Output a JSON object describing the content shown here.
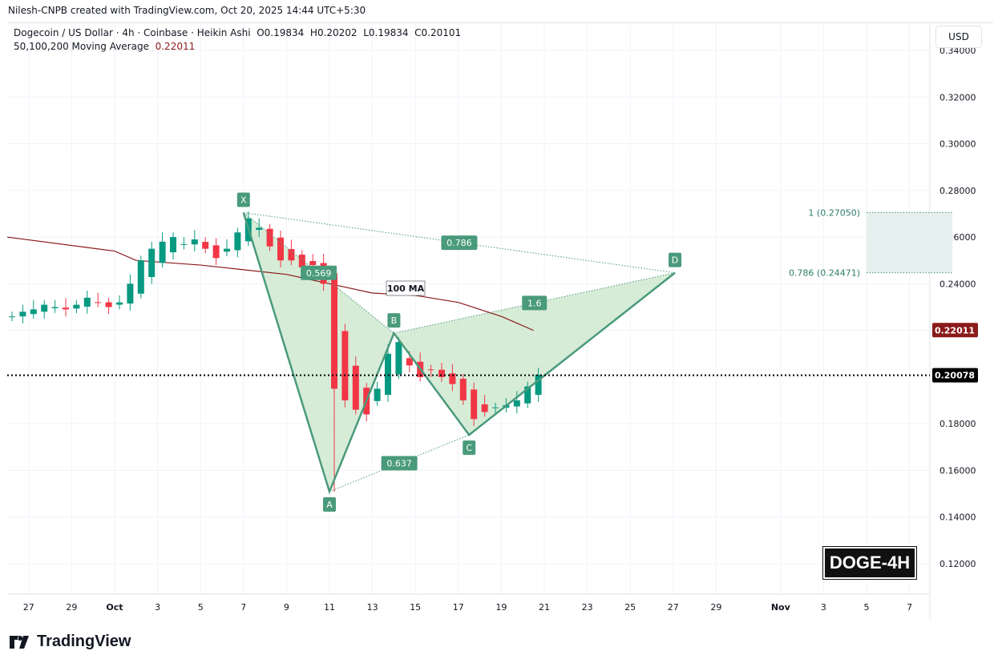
{
  "attribution": "Nilesh-CNPB created with TradingView.com, Oct 20, 2025 14:44 UTC+5:30",
  "legend": {
    "symbol": "Dogecoin / US Dollar · 4h · Coinbase · Heikin Ashi",
    "ohlc": "O0.19834  H0.20202  L0.19834  C0.20101",
    "ma_label": "50,100,200 Moving Average",
    "ma_value": "0.22011"
  },
  "currency_button": "USD",
  "badge": "DOGE-4H",
  "logo_text": "TradingView",
  "colors": {
    "up": "#089981",
    "down": "#f23645",
    "pattern": "#4a9a7c",
    "pattern_fill": "#c8e6c9",
    "ma": "#8b1a1a",
    "target_zone": "#e6f0ee",
    "last_price_bg": "#000000",
    "ma_price_bg": "#8b1a1a"
  },
  "chart_data": {
    "type": "candlestick",
    "title": "",
    "ylim": [
      0.11,
      0.345
    ],
    "y_ticks": [
      "0.34000",
      "0.32000",
      "0.30000",
      "0.28000",
      "0.26000",
      "0.24000",
      "0.18000",
      "0.16000",
      "0.14000",
      "0.12000"
    ],
    "x_ticks": [
      {
        "date": "2025-09-27",
        "label": "27"
      },
      {
        "date": "2025-09-29",
        "label": "29"
      },
      {
        "date": "2025-10-01",
        "label": "Oct"
      },
      {
        "date": "2025-10-03",
        "label": "3"
      },
      {
        "date": "2025-10-05",
        "label": "5"
      },
      {
        "date": "2025-10-07",
        "label": "7"
      },
      {
        "date": "2025-10-09",
        "label": "9"
      },
      {
        "date": "2025-10-11",
        "label": "11"
      },
      {
        "date": "2025-10-13",
        "label": "13"
      },
      {
        "date": "2025-10-15",
        "label": "15"
      },
      {
        "date": "2025-10-17",
        "label": "17"
      },
      {
        "date": "2025-10-19",
        "label": "19"
      },
      {
        "date": "2025-10-21",
        "label": "21"
      },
      {
        "date": "2025-10-23",
        "label": "23"
      },
      {
        "date": "2025-10-25",
        "label": "25"
      },
      {
        "date": "2025-10-27",
        "label": "27"
      },
      {
        "date": "2025-10-29",
        "label": "29"
      },
      {
        "date": "2025-11-01",
        "label": "Nov"
      },
      {
        "date": "2025-11-03",
        "label": "3"
      },
      {
        "date": "2025-11-05",
        "label": "5"
      },
      {
        "date": "2025-11-07",
        "label": "7"
      }
    ],
    "candles": {
      "start": "2025-09-26T00:00",
      "interval_hours": 12,
      "closes": [
        0.226,
        0.228,
        0.229,
        0.231,
        0.23,
        0.229,
        0.231,
        0.234,
        0.232,
        0.23,
        0.232,
        0.24,
        0.25,
        0.255,
        0.258,
        0.26,
        0.257,
        0.259,
        0.255,
        0.251,
        0.255,
        0.262,
        0.268,
        0.264,
        0.256,
        0.25,
        0.25,
        0.247,
        0.248,
        0.24,
        0.195,
        0.19,
        0.186,
        0.184,
        0.195,
        0.21,
        0.215,
        0.205,
        0.2,
        0.203,
        0.2,
        0.197,
        0.19,
        0.182,
        0.185,
        0.187,
        0.188,
        0.19,
        0.196,
        0.201
      ]
    },
    "moving_average": {
      "name": "100 MA",
      "points": [
        [
          "2025-09-26T00:00",
          0.26
        ],
        [
          "2025-10-01T00:00",
          0.254
        ],
        [
          "2025-10-02T00:00",
          0.25
        ],
        [
          "2025-10-05T00:00",
          0.248
        ],
        [
          "2025-10-07T00:00",
          0.246
        ],
        [
          "2025-10-09T00:00",
          0.244
        ],
        [
          "2025-10-11T00:00",
          0.24
        ],
        [
          "2025-10-13T00:00",
          0.236
        ],
        [
          "2025-10-15T00:00",
          0.235
        ],
        [
          "2025-10-17T00:00",
          0.232
        ],
        [
          "2025-10-19T00:00",
          0.226
        ],
        [
          "2025-10-20T12:00",
          0.22
        ]
      ]
    },
    "pattern": {
      "points": [
        {
          "label": "X",
          "date": "2025-10-07T00:00",
          "price": 0.2705
        },
        {
          "label": "A",
          "date": "2025-10-11T00:00",
          "price": 0.1509
        },
        {
          "label": "B",
          "date": "2025-10-14T00:00",
          "price": 0.2188
        },
        {
          "label": "C",
          "date": "2025-10-17T12:00",
          "price": 0.1752
        },
        {
          "label": "D",
          "date": "2025-10-27T02:00",
          "price": 0.2447
        }
      ],
      "ratios": [
        {
          "text": "0.569",
          "from": "X",
          "to": "B"
        },
        {
          "text": "0.786",
          "from": "X",
          "to": "D"
        },
        {
          "text": "1.6",
          "from": "B",
          "to": "D"
        },
        {
          "text": "0.637",
          "from": "A",
          "to": "C"
        }
      ]
    },
    "target_zone": {
      "from_date": "2025-11-05T00:00",
      "to_date": "2025-11-09T00:00",
      "levels": [
        {
          "label": "1 (0.27050)",
          "price": 0.2705
        },
        {
          "label": "0.786 (0.24471)",
          "price": 0.24471
        }
      ]
    },
    "price_labels": {
      "ma": "0.22011",
      "last": "0.20078"
    },
    "last_price": 0.20078,
    "ma_last": 0.22011
  }
}
